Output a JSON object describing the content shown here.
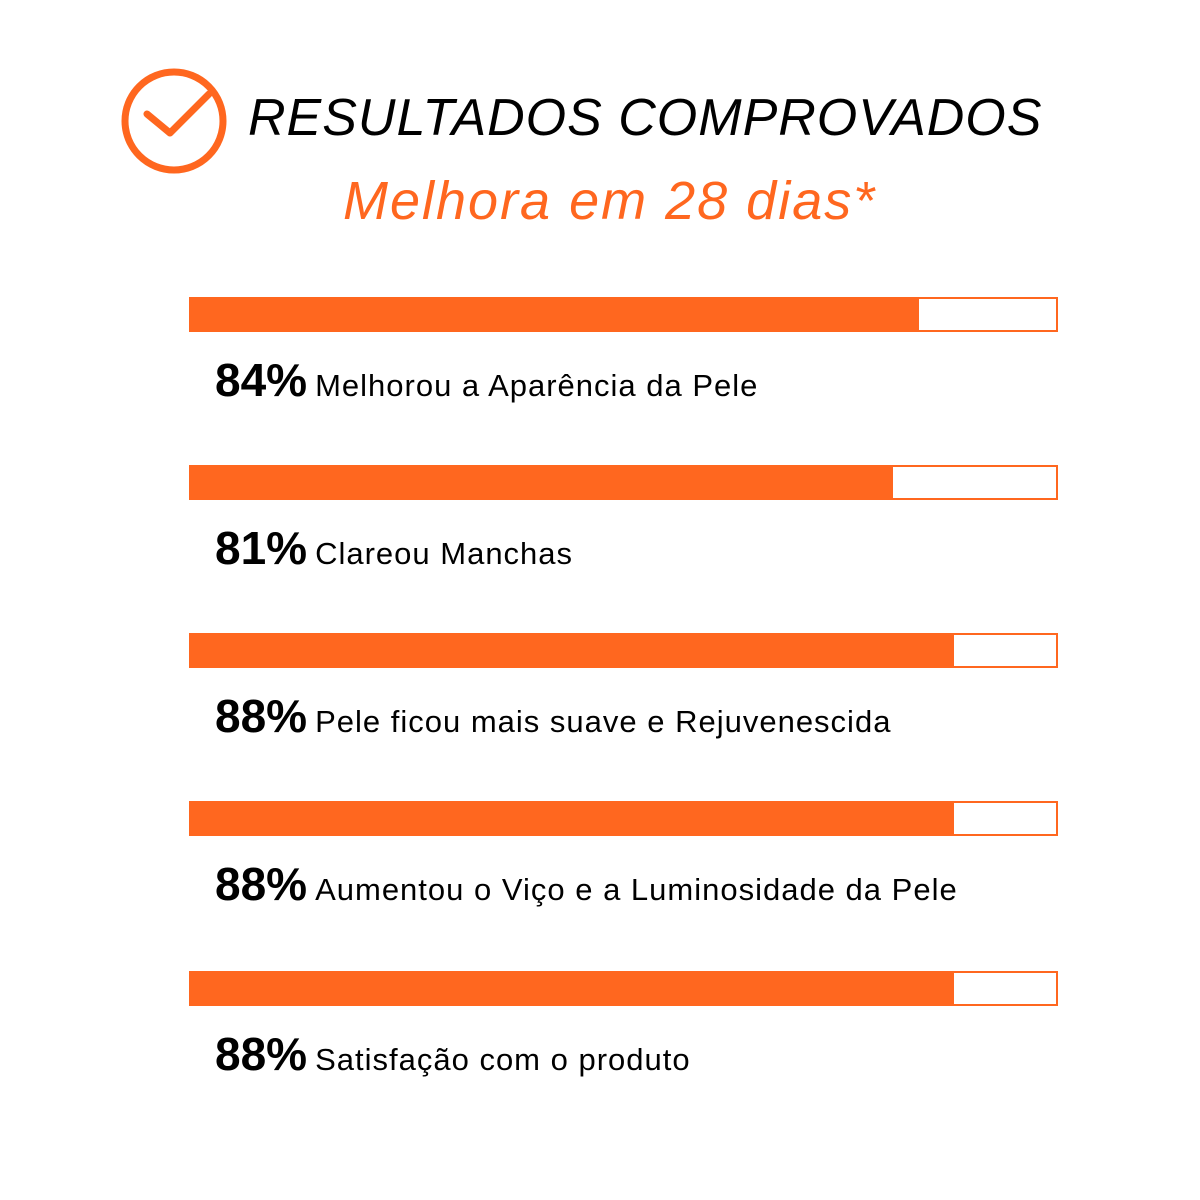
{
  "header": {
    "icon": "check-circle-icon",
    "title": "RESULTADOS COMPROVADOS",
    "subtitle": "Melhora em 28 dias*"
  },
  "colors": {
    "accent": "#ff671f",
    "text": "#000000"
  },
  "chart_data": {
    "type": "bar",
    "orientation": "horizontal",
    "xlim": [
      0,
      100
    ],
    "categories": [
      "Melhorou a Aparência da Pele",
      "Clareou Manchas",
      "Pele ficou mais suave e Rejuvenescida",
      "Aumentou o Viço e a Luminosidade da Pele",
      "Satisfação com o produto"
    ],
    "values": [
      84,
      81,
      88,
      88,
      88
    ],
    "labels": [
      "84%",
      "81%",
      "88%",
      "88%",
      "88%"
    ]
  }
}
